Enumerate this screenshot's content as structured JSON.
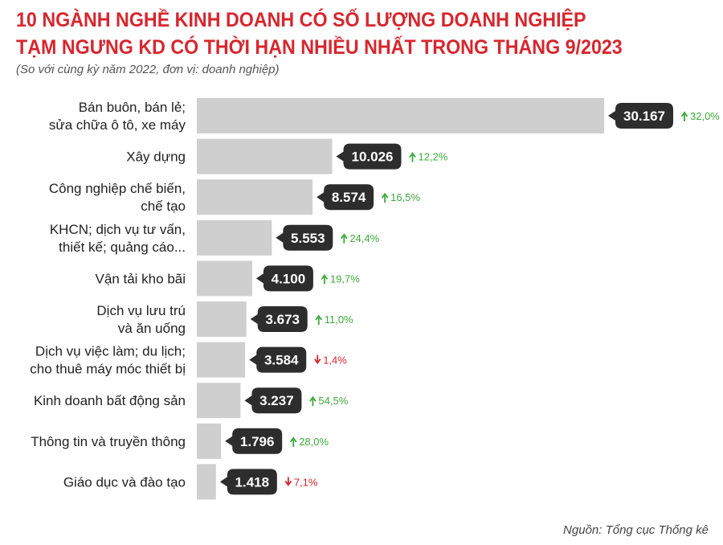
{
  "header": {
    "title_line1": "10 NGÀNH NGHỀ KINH DOANH CÓ SỐ LƯỢNG DOANH NGHIỆP",
    "title_line2": "TẠM NGƯNG KD CÓ THỜI HẠN NHIỀU NHẤT TRONG THÁNG 9/2023",
    "subtitle": "(So với cùng kỳ năm 2022, đơn vị: doanh nghiệp)"
  },
  "footer": {
    "source": "Nguồn: Tổng cục Thống kê"
  },
  "chart_data": {
    "type": "bar",
    "orientation": "horizontal",
    "categories": [
      [
        "Bán buôn, bán lẻ;",
        "sửa chữa ô tô, xe máy"
      ],
      [
        "Xây dựng"
      ],
      [
        "Công nghiệp chế biến,",
        "chế tạo"
      ],
      [
        "KHCN; dịch vụ tư vấn,",
        "thiết kế; quảng cáo..."
      ],
      [
        "Vận tải kho bãi"
      ],
      [
        "Dịch vụ lưu trú",
        "và ăn uống"
      ],
      [
        "Dịch vụ việc làm; du lịch;",
        "cho thuê máy móc thiết bị"
      ],
      [
        "Kinh doanh bất động sản"
      ],
      [
        "Thông tin và truyền thông"
      ],
      [
        "Giáo dục và đào tạo"
      ]
    ],
    "values": [
      30167,
      10026,
      8574,
      5553,
      4100,
      3673,
      3584,
      3237,
      1796,
      1418
    ],
    "value_labels": [
      "30.167",
      "10.026",
      "8.574",
      "5.553",
      "4.100",
      "3.673",
      "3.584",
      "3.237",
      "1.796",
      "1.418"
    ],
    "changes": [
      {
        "dir": "up",
        "label": "32,0%"
      },
      {
        "dir": "up",
        "label": "12,2%"
      },
      {
        "dir": "up",
        "label": "16,5%"
      },
      {
        "dir": "up",
        "label": "24,4%"
      },
      {
        "dir": "up",
        "label": "19,7%"
      },
      {
        "dir": "up",
        "label": "11,0%"
      },
      {
        "dir": "down",
        "label": "1,4%"
      },
      {
        "dir": "up",
        "label": "54,5%"
      },
      {
        "dir": "up",
        "label": "28,0%"
      },
      {
        "dir": "down",
        "label": "7,1%"
      }
    ],
    "colors": {
      "bar": "#d0cfcf",
      "label_box": "#2d2d2d",
      "up": "#3daa3d",
      "down": "#d7262e",
      "title": "#d7262e"
    },
    "xlim": [
      0,
      30167
    ],
    "grid": false
  }
}
